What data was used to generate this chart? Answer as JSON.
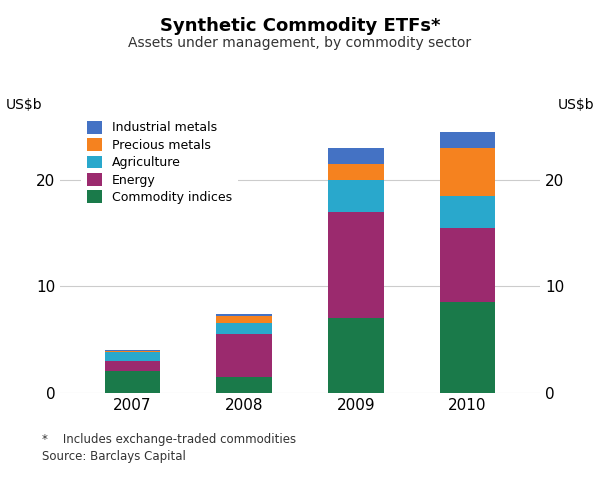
{
  "years": [
    "2007",
    "2008",
    "2009",
    "2010"
  ],
  "categories": [
    "Commodity indices",
    "Energy",
    "Agriculture",
    "Precious metals",
    "Industrial metals"
  ],
  "colors": [
    "#1a7a4a",
    "#9b2a6e",
    "#29a8cc",
    "#f5821f",
    "#4472c4"
  ],
  "values": {
    "Commodity indices": [
      2.0,
      1.5,
      7.0,
      8.5
    ],
    "Energy": [
      1.0,
      4.0,
      10.0,
      7.0
    ],
    "Agriculture": [
      0.8,
      1.1,
      3.0,
      3.0
    ],
    "Precious metals": [
      0.15,
      0.6,
      1.5,
      4.5
    ],
    "Industrial metals": [
      0.1,
      0.2,
      1.5,
      1.5
    ]
  },
  "title": "Synthetic Commodity ETFs*",
  "subtitle": "Assets under management, by commodity sector",
  "ylabel_left": "US$b",
  "ylabel_right": "US$b",
  "ylim": [
    0,
    27
  ],
  "yticks": [
    0,
    10,
    20
  ],
  "footnote1": "*    Includes exchange-traded commodities",
  "footnote2": "Source: Barclays Capital",
  "background_color": "#ffffff",
  "grid_color": "#cccccc",
  "bar_width": 0.5
}
